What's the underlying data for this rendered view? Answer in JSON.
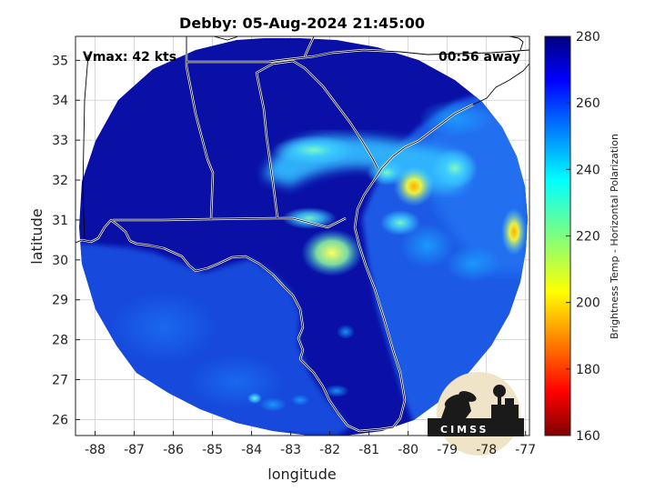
{
  "chart_data": {
    "type": "heatmap",
    "title": "Debby: 05-Aug-2024 21:45:00",
    "xlabel": "longitude",
    "ylabel": "latitude",
    "xlim": [
      -88.5,
      -76.9
    ],
    "ylim": [
      25.6,
      35.6
    ],
    "xticks": [
      "-88",
      "-87",
      "-86",
      "-85",
      "-84",
      "-83",
      "-82",
      "-81",
      "-80",
      "-79",
      "-78",
      "-77"
    ],
    "yticks": [
      "26",
      "27",
      "28",
      "29",
      "30",
      "31",
      "32",
      "33",
      "34",
      "35"
    ],
    "grid": true,
    "annotations": {
      "vmax": "Vmax: 42 kts",
      "time_away": "00:56 away"
    },
    "colorbar": {
      "label": "Brightness Temp - Horizontal Polarization",
      "min": 160,
      "max": 280,
      "ticks": [
        "280",
        "260",
        "240",
        "220",
        "200",
        "180",
        "160"
      ],
      "colormap": "jet"
    },
    "swath": {
      "center_lon": -82.5,
      "center_lat": 30.7,
      "background_value": 262,
      "cold_features": [
        {
          "region": "Georgia / South Carolina coast band",
          "lon": -81.5,
          "lat": 32.6,
          "value": 245
        },
        {
          "region": "Savannah convection",
          "lon": -80.2,
          "lat": 31.9,
          "value": 228
        },
        {
          "region": "NE Florida / Jacksonville",
          "lon": -81.6,
          "lat": 30.3,
          "value": 240
        },
        {
          "region": "Atlantic cell east",
          "lon": -77.2,
          "lat": 30.8,
          "value": 222
        },
        {
          "region": "Atlantic cell offshore",
          "lon": -79.8,
          "lat": 30.9,
          "value": 244
        }
      ]
    },
    "logo": "CIMSS"
  }
}
